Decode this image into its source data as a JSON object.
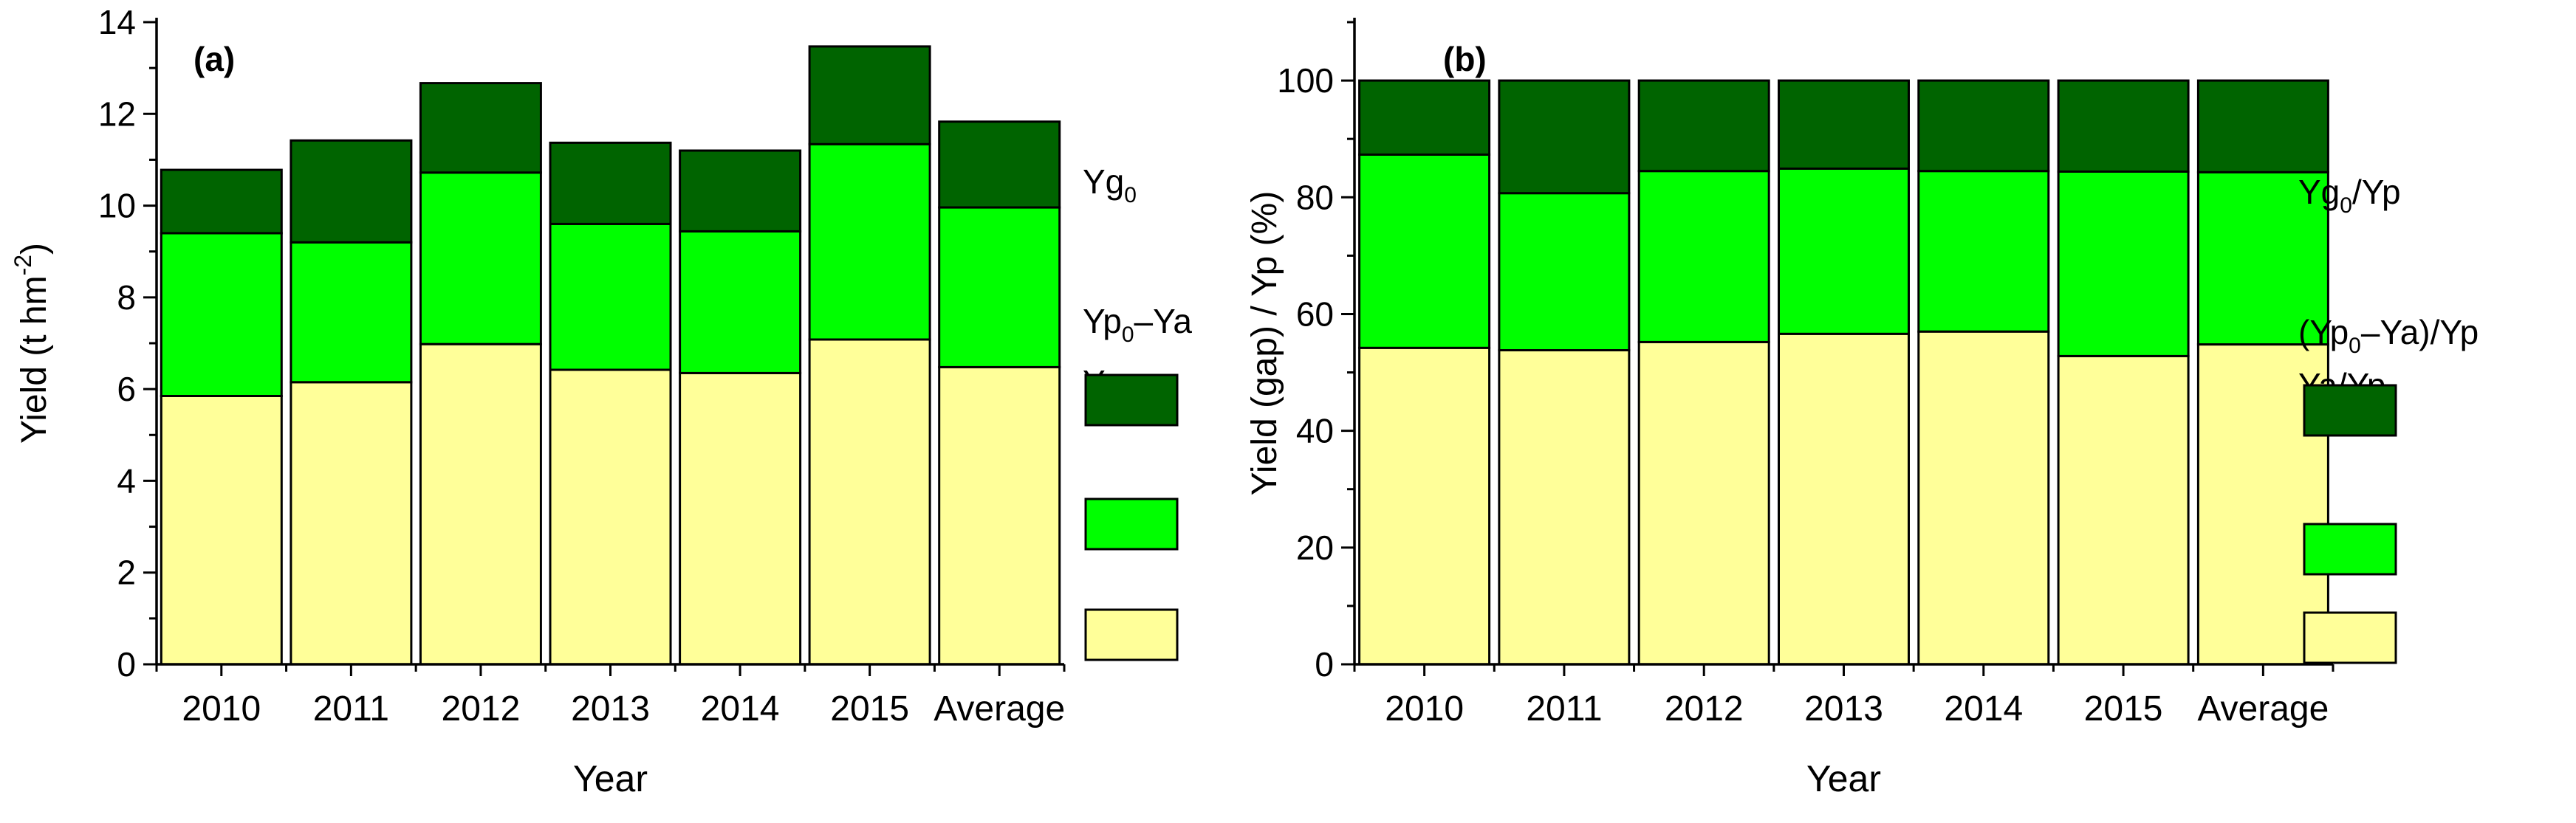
{
  "colors": {
    "ya": "#FFFF99",
    "gap": "#00FF00",
    "yg": "#006400",
    "axis": "#000000",
    "background": "#FFFFFF"
  },
  "chart_data": [
    {
      "id": "a",
      "type": "bar",
      "stacked": true,
      "panel_label": "(a)",
      "xlabel": "Year",
      "ylabel": "Yield (t hm-2)",
      "ylabel_parts": [
        "Yield (t hm",
        "-2",
        ")"
      ],
      "categories": [
        "2010",
        "2011",
        "2012",
        "2013",
        "2014",
        "2015",
        "Average"
      ],
      "ylim": [
        0,
        14
      ],
      "yticks": [
        0,
        2,
        4,
        6,
        8,
        10,
        12,
        14
      ],
      "yticks_minor": [
        1,
        3,
        5,
        7,
        9,
        11,
        13
      ],
      "legend_position": "right",
      "series": [
        {
          "name": "Ya",
          "name_base": "Ya",
          "name_sub": "",
          "name_rest": "",
          "color_key": "ya",
          "values": [
            5.85,
            6.15,
            6.98,
            6.42,
            6.35,
            7.08,
            6.48
          ]
        },
        {
          "name": "Yp0–Ya",
          "name_base": "Yp",
          "name_sub": "0",
          "name_rest": "–Ya",
          "color_key": "gap",
          "values": [
            3.55,
            3.05,
            3.74,
            3.18,
            3.09,
            4.26,
            3.48
          ]
        },
        {
          "name": "Yg0",
          "name_base": "Yg",
          "name_sub": "0",
          "name_rest": "",
          "color_key": "yg",
          "values": [
            1.38,
            2.22,
            1.95,
            1.77,
            1.76,
            2.13,
            1.87
          ]
        }
      ]
    },
    {
      "id": "b",
      "type": "bar",
      "stacked": true,
      "panel_label": "(b)",
      "xlabel": "Year",
      "ylabel": "Yield (gap) / Yp (%)",
      "ylabel_parts": [
        "Yield (gap) / Yp (%)",
        "",
        ""
      ],
      "categories": [
        "2010",
        "2011",
        "2012",
        "2013",
        "2014",
        "2015",
        "Average"
      ],
      "ylim": [
        0,
        110
      ],
      "yticks": [
        0,
        20,
        40,
        60,
        80,
        100
      ],
      "yticks_minor": [
        10,
        30,
        50,
        70,
        90,
        110
      ],
      "legend_position": "right",
      "series": [
        {
          "name": "Ya/Yp",
          "name_base": "Ya/Yp",
          "name_sub": "",
          "name_rest": "",
          "color_key": "ya",
          "values": [
            54.2,
            53.8,
            55.2,
            56.6,
            57.0,
            52.8,
            54.8
          ]
        },
        {
          "name": "(Yp0–Ya)/Yp",
          "name_base": "(Yp",
          "name_sub": "0",
          "name_rest": "–Ya)/Yp",
          "color_key": "gap",
          "values": [
            33.1,
            26.9,
            29.3,
            28.3,
            27.5,
            31.6,
            29.5
          ]
        },
        {
          "name": "Yg0/Yp",
          "name_base": "Yg",
          "name_sub": "0",
          "name_rest": "/Yp",
          "color_key": "yg",
          "values": [
            12.7,
            19.3,
            15.5,
            15.1,
            15.5,
            15.6,
            15.7
          ]
        }
      ]
    }
  ]
}
